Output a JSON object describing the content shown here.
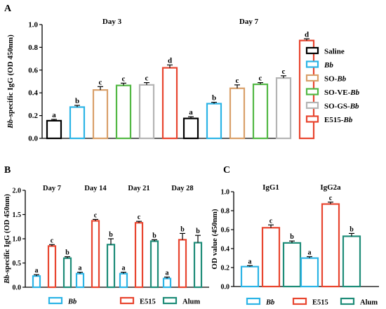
{
  "chart_data": [
    {
      "panel": "A",
      "type": "bar",
      "ylabel": "Bb-specific IgG (OD 450nm)",
      "ylim": [
        0,
        1.0
      ],
      "yticks": [
        "0.0",
        "0.2",
        "0.4",
        "0.6",
        "0.8",
        "1.0"
      ],
      "groups": [
        "Day 3",
        "Day 7"
      ],
      "legend_position": "right",
      "series": [
        {
          "name": "Saline",
          "color": "#000000",
          "values": [
            0.155,
            0.175
          ],
          "errors": [
            0.012,
            0.015
          ],
          "letters": [
            "a",
            "a"
          ]
        },
        {
          "name": "Bb",
          "color": "#2cb4e6",
          "values": [
            0.275,
            0.305
          ],
          "errors": [
            0.015,
            0.012
          ],
          "letters": [
            "b",
            "b"
          ]
        },
        {
          "name": "SO-Bb",
          "color": "#d9a06a",
          "values": [
            0.425,
            0.44
          ],
          "errors": [
            0.03,
            0.03
          ],
          "letters": [
            "c",
            "c"
          ]
        },
        {
          "name": "SO-VE-Bb",
          "color": "#52b844",
          "values": [
            0.465,
            0.475
          ],
          "errors": [
            0.02,
            0.015
          ],
          "letters": [
            "c",
            "c"
          ]
        },
        {
          "name": "SO-GS-Bb",
          "color": "#b4b4b4",
          "values": [
            0.47,
            0.53
          ],
          "errors": [
            0.02,
            0.02
          ],
          "letters": [
            "c",
            "c"
          ]
        },
        {
          "name": "E515-Bb",
          "color": "#e8452f",
          "values": [
            0.62,
            0.86
          ],
          "errors": [
            0.025,
            0.015
          ],
          "letters": [
            "d",
            "d"
          ]
        }
      ]
    },
    {
      "panel": "B",
      "type": "bar",
      "ylabel": "Bb-specific IgG (OD 450nm)",
      "ylim": [
        0,
        2.0
      ],
      "yticks": [
        "0.0",
        "0.5",
        "1.0",
        "1.5",
        "2.0"
      ],
      "groups": [
        "Day 7",
        "Day 14",
        "Day 21",
        "Day 28"
      ],
      "legend_position": "bottom",
      "series": [
        {
          "name": "Bb",
          "color": "#2cb4e6",
          "values": [
            0.23,
            0.28,
            0.28,
            0.18
          ],
          "errors": [
            0.03,
            0.03,
            0.03,
            0.03
          ],
          "letters": [
            "a",
            "a",
            "a",
            "a"
          ]
        },
        {
          "name": "E515",
          "color": "#e8452f",
          "values": [
            0.85,
            1.37,
            1.33,
            0.98
          ],
          "errors": [
            0.03,
            0.03,
            0.03,
            0.13
          ],
          "letters": [
            "c",
            "c",
            "c",
            "b"
          ]
        },
        {
          "name": "Alum",
          "color": "#1e8c78",
          "values": [
            0.6,
            0.88,
            0.95,
            0.92
          ],
          "errors": [
            0.03,
            0.12,
            0.03,
            0.15
          ],
          "letters": [
            "b",
            "b",
            "b",
            "b"
          ]
        }
      ]
    },
    {
      "panel": "C",
      "type": "bar",
      "ylabel": "OD value (450nm)",
      "ylim": [
        0,
        1.0
      ],
      "yticks": [
        "0.0",
        "0.2",
        "0.4",
        "0.6",
        "0.8",
        "1.0"
      ],
      "groups": [
        "IgG1",
        "IgG2a"
      ],
      "legend_position": "bottom",
      "series": [
        {
          "name": "Bb",
          "color": "#2cb4e6",
          "values": [
            0.21,
            0.3
          ],
          "errors": [
            0.01,
            0.015
          ],
          "letters": [
            "a",
            "a"
          ]
        },
        {
          "name": "E515",
          "color": "#e8452f",
          "values": [
            0.62,
            0.87
          ],
          "errors": [
            0.03,
            0.02
          ],
          "letters": [
            "c",
            "c"
          ]
        },
        {
          "name": "Alum",
          "color": "#1e8c78",
          "values": [
            0.46,
            0.53
          ],
          "errors": [
            0.02,
            0.03
          ],
          "letters": [
            "b",
            "b"
          ]
        }
      ]
    }
  ]
}
